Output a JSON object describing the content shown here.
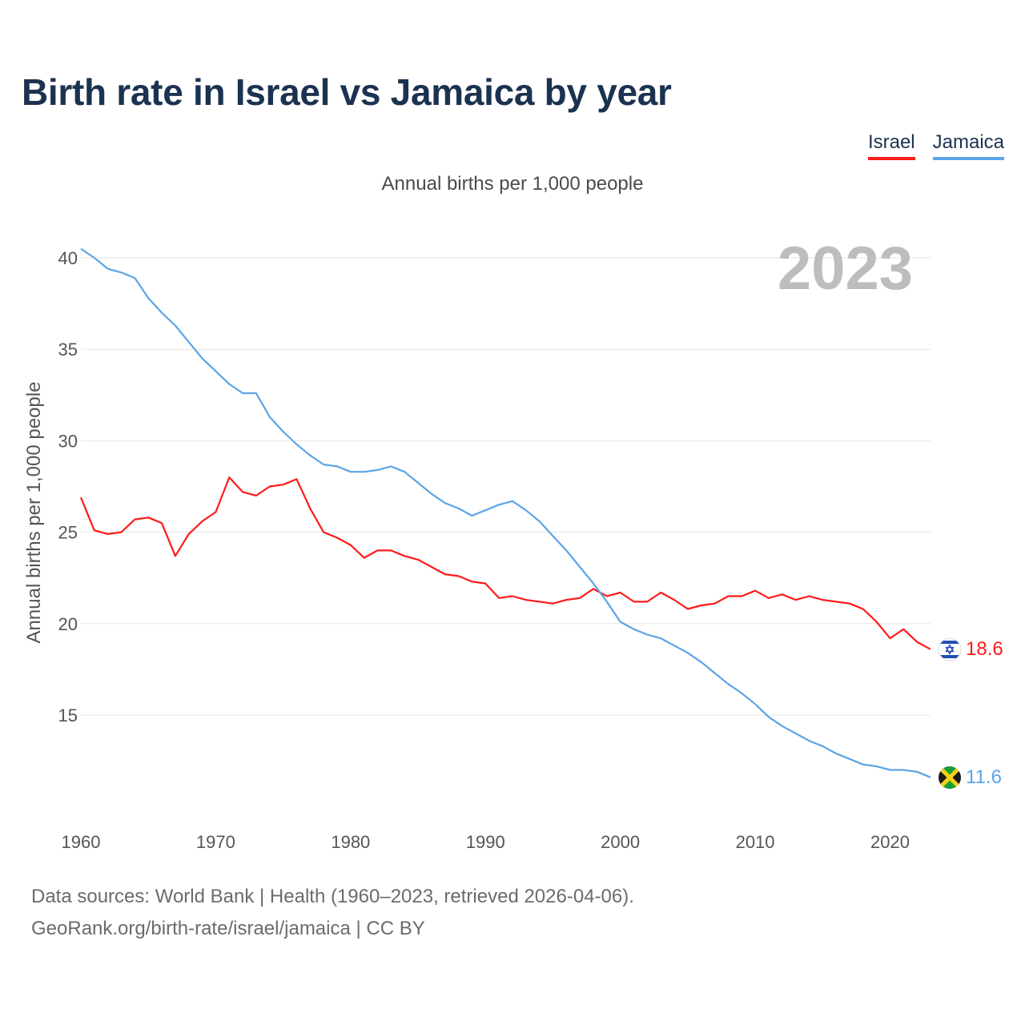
{
  "title": "Birth rate in Israel vs Jamaica by year",
  "subtitle": "Annual births per 1,000 people",
  "legend": {
    "israel": "Israel",
    "jamaica": "Jamaica"
  },
  "source_line1": "Data sources: World Bank | Health (1960–2023, retrieved 2026-04-06).",
  "source_line2": "GeoRank.org/birth-rate/israel/jamaica | CC BY",
  "year_display": "2023",
  "colors": {
    "israel": "#ff1a1a",
    "jamaica": "#5ba4e6",
    "title": "#1b3250"
  },
  "chart_data": {
    "type": "line",
    "title": "Birth rate in Israel vs Jamaica by year",
    "ylabel": "Annual births per 1,000 people",
    "xlabel": "",
    "xlim": [
      1960,
      2023
    ],
    "ylim": [
      10,
      41
    ],
    "yticks": [
      15,
      20,
      25,
      30,
      35,
      40
    ],
    "xticks": [
      1960,
      1970,
      1980,
      1990,
      2000,
      2010,
      2020
    ],
    "grid": true,
    "x": [
      1960,
      1961,
      1962,
      1963,
      1964,
      1965,
      1966,
      1967,
      1968,
      1969,
      1970,
      1971,
      1972,
      1973,
      1974,
      1975,
      1976,
      1977,
      1978,
      1979,
      1980,
      1981,
      1982,
      1983,
      1984,
      1985,
      1986,
      1987,
      1988,
      1989,
      1990,
      1991,
      1992,
      1993,
      1994,
      1995,
      1996,
      1997,
      1998,
      1999,
      2000,
      2001,
      2002,
      2003,
      2004,
      2005,
      2006,
      2007,
      2008,
      2009,
      2010,
      2011,
      2012,
      2013,
      2014,
      2015,
      2016,
      2017,
      2018,
      2019,
      2020,
      2021,
      2022,
      2023
    ],
    "series": [
      {
        "name": "Israel",
        "end_label": "18.6",
        "values": [
          26.9,
          25.1,
          24.9,
          25.0,
          25.7,
          25.8,
          25.5,
          23.7,
          24.9,
          25.6,
          26.1,
          28.0,
          27.2,
          27.0,
          27.5,
          27.6,
          27.9,
          26.3,
          25.0,
          24.7,
          24.3,
          23.6,
          24.0,
          24.0,
          23.7,
          23.5,
          23.1,
          22.7,
          22.6,
          22.3,
          22.2,
          21.4,
          21.5,
          21.3,
          21.2,
          21.1,
          21.3,
          21.4,
          21.9,
          21.5,
          21.7,
          21.2,
          21.2,
          21.7,
          21.3,
          20.8,
          21.0,
          21.1,
          21.5,
          21.5,
          21.8,
          21.4,
          21.6,
          21.3,
          21.5,
          21.3,
          21.2,
          21.1,
          20.8,
          20.1,
          19.2,
          19.7,
          19.0,
          18.6
        ]
      },
      {
        "name": "Jamaica",
        "end_label": "11.6",
        "values": [
          40.5,
          40.0,
          39.4,
          39.2,
          38.9,
          37.8,
          37.0,
          36.3,
          35.4,
          34.5,
          33.8,
          33.1,
          32.6,
          32.6,
          31.3,
          30.5,
          29.8,
          29.2,
          28.7,
          28.6,
          28.3,
          28.3,
          28.4,
          28.6,
          28.3,
          27.7,
          27.1,
          26.6,
          26.3,
          25.9,
          26.2,
          26.5,
          26.7,
          26.2,
          25.6,
          24.8,
          24.0,
          23.1,
          22.2,
          21.2,
          20.1,
          19.7,
          19.4,
          19.2,
          18.8,
          18.4,
          17.9,
          17.3,
          16.7,
          16.2,
          15.6,
          14.9,
          14.4,
          14.0,
          13.6,
          13.3,
          12.9,
          12.6,
          12.3,
          12.2,
          12.0,
          12.0,
          11.9,
          11.6
        ]
      }
    ]
  }
}
